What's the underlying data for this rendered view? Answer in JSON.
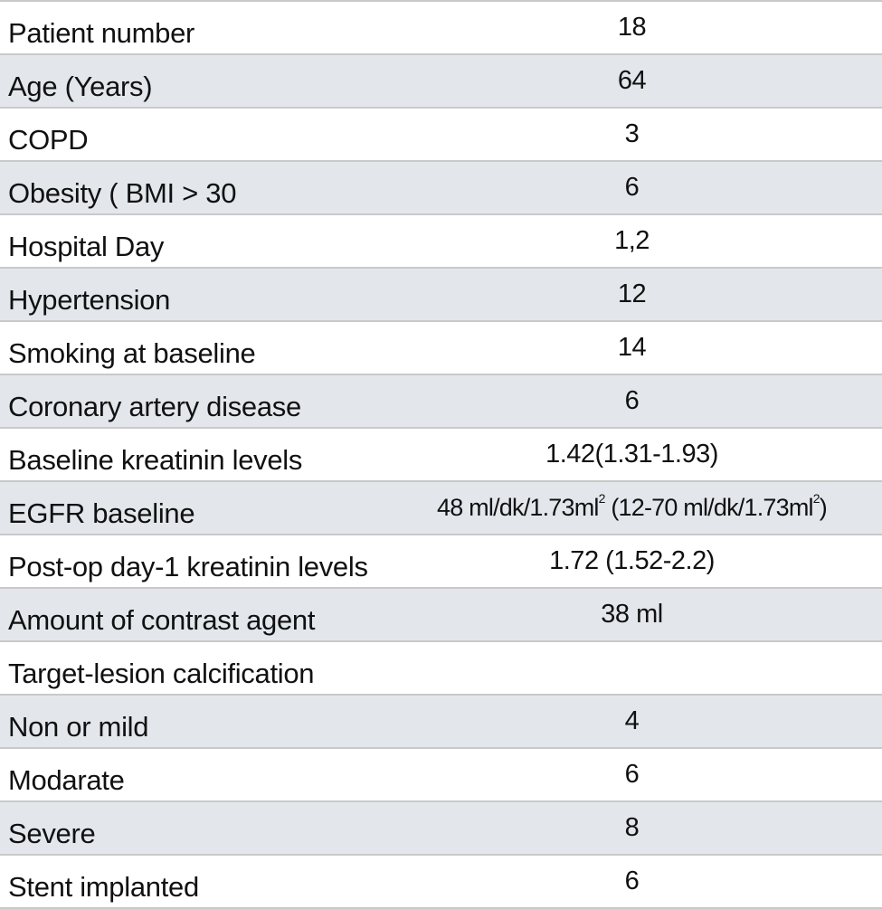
{
  "rows": [
    {
      "label": "Patient number",
      "value": "18"
    },
    {
      "label": "Age (Years)",
      "value": "64"
    },
    {
      "label": "COPD",
      "value": "3"
    },
    {
      "label": "Obesity ( BMI > 30",
      "value": "6"
    },
    {
      "label": "Hospital Day",
      "value": "1,2"
    },
    {
      "label": "Hypertension",
      "value": "12"
    },
    {
      "label": "Smoking at baseline",
      "value": "14"
    },
    {
      "label": "Coronary artery disease",
      "value": "6"
    },
    {
      "label": "Baseline kreatinin levels",
      "value": "1.42(1.31-1.93)"
    },
    {
      "label": "EGFR baseline",
      "value_parts": [
        "48 ml/dk/1.73ml",
        "2",
        " (12-70 ml/dk/1.73ml",
        "2",
        ")"
      ]
    },
    {
      "label": "Post-op day-1 kreatinin levels",
      "value": "1.72 (1.52-2.2)"
    },
    {
      "label": "Amount of contrast agent",
      "value": "38 ml"
    },
    {
      "label": "Target-lesion calcification",
      "value": ""
    },
    {
      "label": "Non or mild",
      "value": "4"
    },
    {
      "label": "Modarate",
      "value": "6"
    },
    {
      "label": "Severe",
      "value": "8"
    },
    {
      "label": "Stent implanted",
      "value": "6"
    }
  ]
}
